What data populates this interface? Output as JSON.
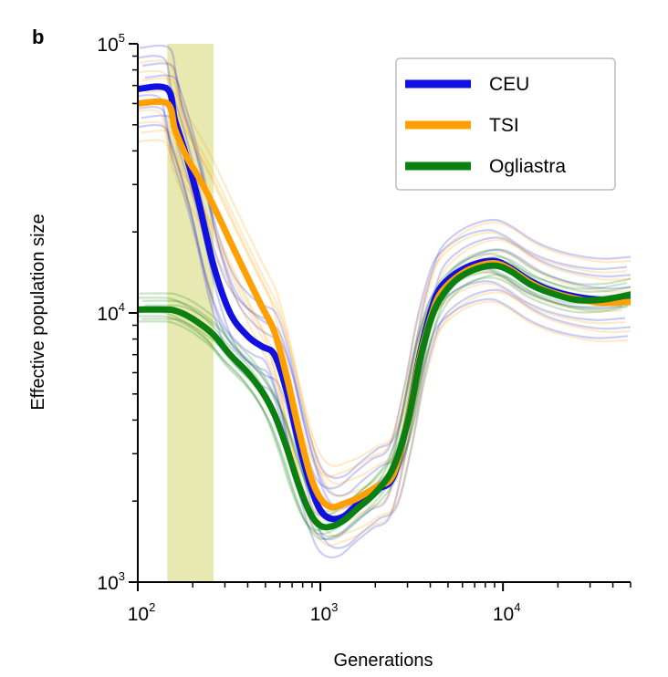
{
  "panel_label": "b",
  "chart_data": {
    "type": "line",
    "title": "",
    "xlabel": "Generations",
    "ylabel": "Effective population size",
    "xscale": "log",
    "yscale": "log",
    "xlim": [
      100,
      50000
    ],
    "ylim": [
      1000,
      100000
    ],
    "x_ticks": [
      {
        "base": "10",
        "exp": "2",
        "value": 100
      },
      {
        "base": "10",
        "exp": "3",
        "value": 1000
      },
      {
        "base": "10",
        "exp": "4",
        "value": 10000
      }
    ],
    "y_ticks": [
      {
        "base": "10",
        "exp": "3",
        "value": 1000
      },
      {
        "base": "10",
        "exp": "4",
        "value": 10000
      },
      {
        "base": "10",
        "exp": "5",
        "value": 100000
      }
    ],
    "highlight_band": {
      "x_range": [
        145,
        260
      ],
      "color": "#e8e9b0"
    },
    "legend_position": "top-right",
    "series": [
      {
        "name": "CEU",
        "color": "#1010e0",
        "x": [
          100,
          145,
          160,
          185,
          215,
          260,
          320,
          400,
          480,
          560,
          650,
          760,
          880,
          1000,
          1150,
          1350,
          1600,
          2000,
          2500,
          3000,
          3500,
          4000,
          4500,
          5500,
          7000,
          9000,
          11000,
          14000,
          18000,
          25000,
          35000,
          50000
        ],
        "y": [
          68000,
          68000,
          52000,
          38000,
          26000,
          15000,
          10000,
          8200,
          7500,
          7000,
          5200,
          3300,
          2300,
          1850,
          1720,
          1760,
          1950,
          2200,
          2450,
          4000,
          7000,
          10000,
          12300,
          14000,
          15200,
          15600,
          14700,
          13200,
          12200,
          11500,
          11200,
          11400
        ]
      },
      {
        "name": "TSI",
        "color": "#ffa000",
        "x": [
          100,
          145,
          160,
          185,
          215,
          260,
          320,
          400,
          480,
          560,
          650,
          760,
          880,
          1000,
          1150,
          1350,
          1600,
          2000,
          2500,
          3000,
          3500,
          4000,
          4500,
          5500,
          7000,
          9000,
          11000,
          14000,
          18000,
          25000,
          35000,
          50000
        ],
        "y": [
          60000,
          60000,
          48000,
          38000,
          32000,
          25000,
          18500,
          13500,
          10500,
          8500,
          5900,
          3700,
          2500,
          2050,
          1900,
          1960,
          2050,
          2250,
          2500,
          4000,
          6800,
          9500,
          11700,
          13500,
          14800,
          15300,
          14500,
          13000,
          12000,
          11300,
          10900,
          11000
        ]
      },
      {
        "name": "Ogliastra",
        "color": "#0a8010",
        "x": [
          100,
          145,
          160,
          185,
          215,
          260,
          320,
          400,
          480,
          560,
          650,
          760,
          880,
          1000,
          1150,
          1350,
          1600,
          2000,
          2500,
          3000,
          3500,
          4000,
          4500,
          5500,
          7000,
          9000,
          11000,
          14000,
          18000,
          25000,
          35000,
          50000
        ],
        "y": [
          10300,
          10300,
          10200,
          9800,
          9200,
          8300,
          7000,
          6000,
          5100,
          4200,
          3200,
          2300,
          1800,
          1620,
          1610,
          1700,
          1880,
          2150,
          2650,
          3900,
          6600,
          9300,
          11200,
          13200,
          14500,
          15000,
          14300,
          12800,
          11900,
          11200,
          11200,
          11700
        ]
      }
    ]
  }
}
